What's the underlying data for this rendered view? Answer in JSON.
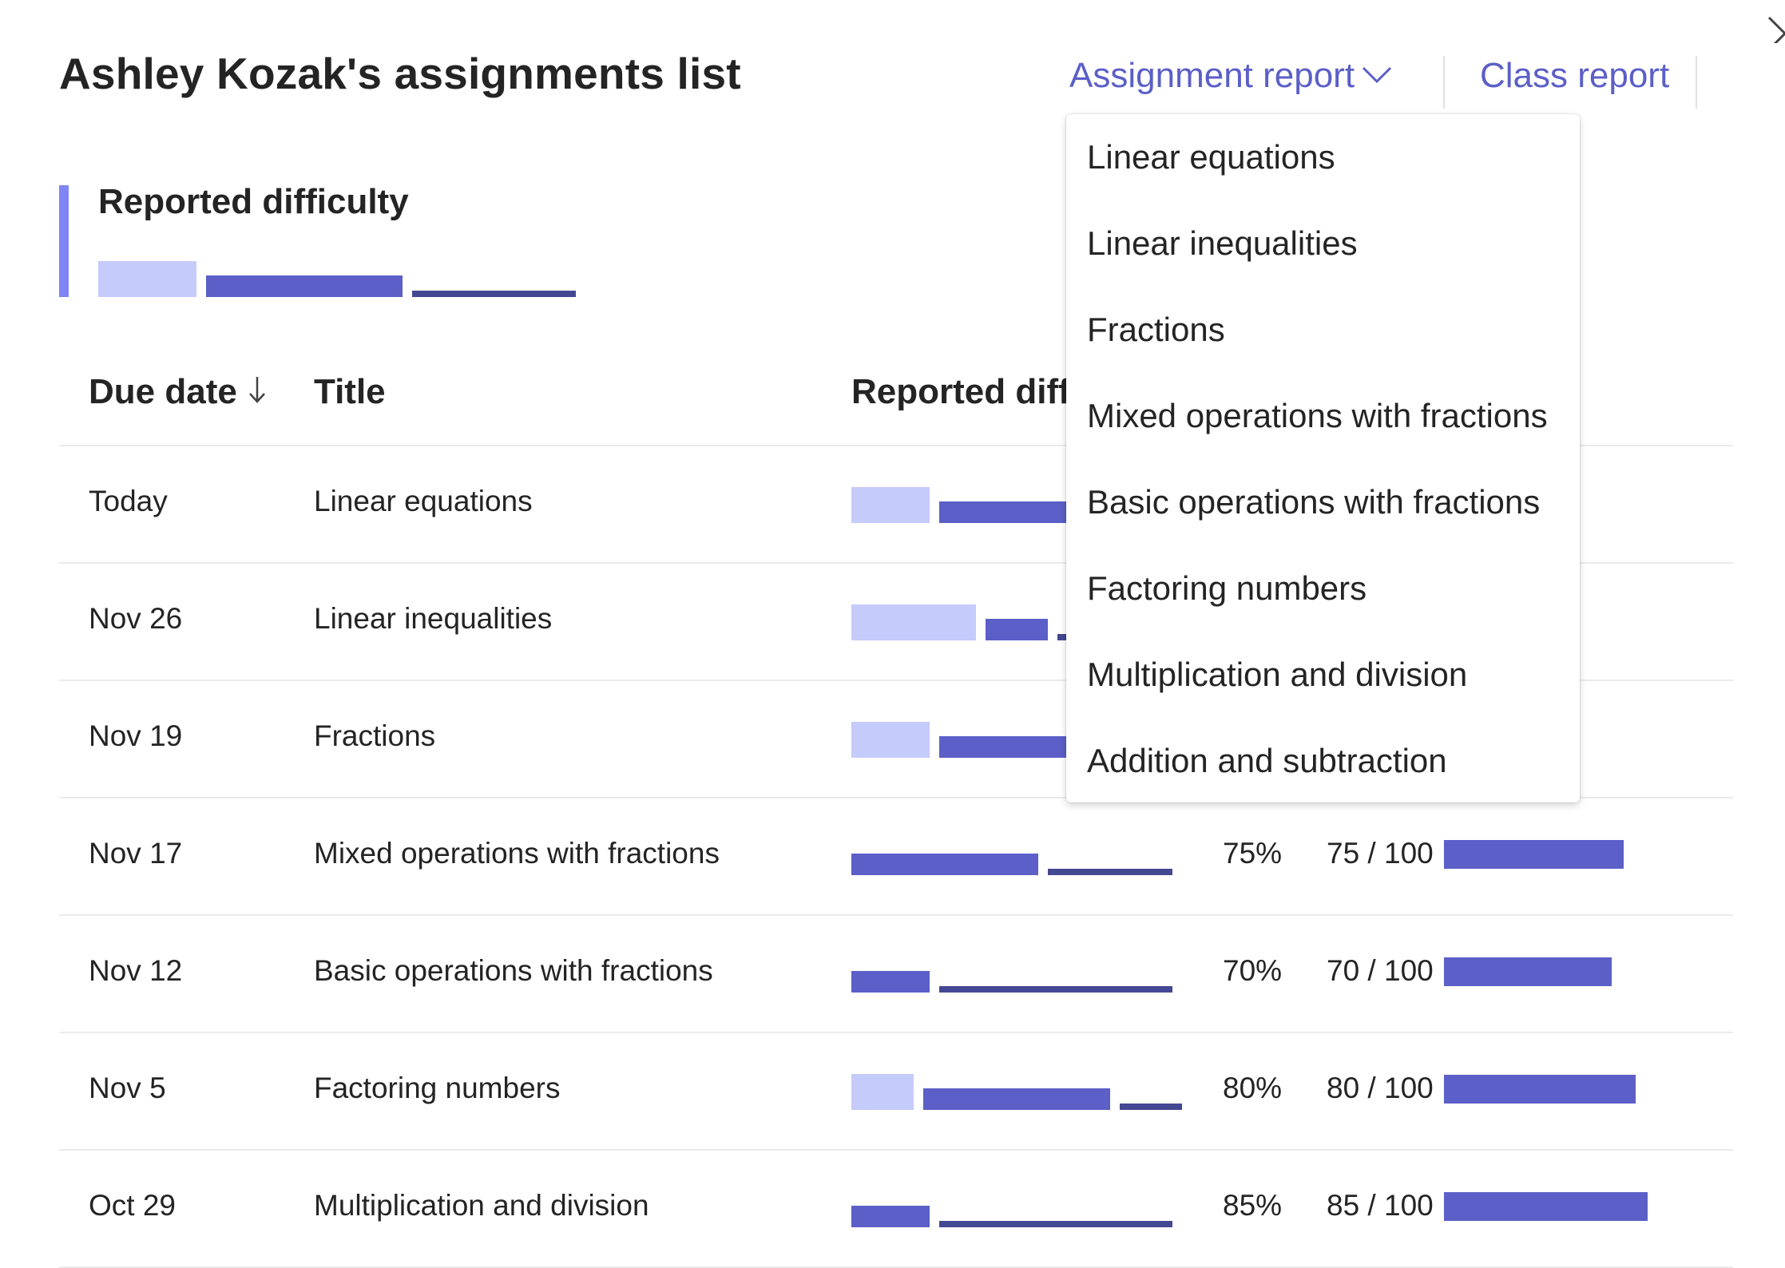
{
  "header": {
    "title": "Ashley Kozak's assignments list",
    "assignment_report_label": "Assignment report",
    "class_report_label": "Class report"
  },
  "summary": {
    "title": "Reported difficulty",
    "difficulty_fractions": [
      0.15,
      0.3,
      0.25
    ]
  },
  "columns": {
    "due_date": "Due date",
    "title": "Title",
    "reported_difficulty": "Reported diffi"
  },
  "rows": [
    {
      "due": "Today",
      "title": "Linear equations",
      "percent": "",
      "score": "",
      "difficulty": [
        0.25,
        0.45,
        0
      ],
      "grade_fraction": null
    },
    {
      "due": "Nov 26",
      "title": "Linear inequalities",
      "percent": "",
      "score": "",
      "difficulty": [
        0.4,
        0.2,
        0.05
      ],
      "grade_fraction": null
    },
    {
      "due": "Nov 19",
      "title": "Fractions",
      "percent": "",
      "score": "",
      "difficulty": [
        0.25,
        0.45,
        0
      ],
      "grade_fraction": null
    },
    {
      "due": "Nov 17",
      "title": "Mixed operations with fractions",
      "percent": "75%",
      "score": "75 / 100",
      "difficulty": [
        0,
        0.6,
        0.4
      ],
      "grade_fraction": 0.75
    },
    {
      "due": "Nov 12",
      "title": "Basic operations with fractions",
      "percent": "70%",
      "score": "70 / 100",
      "difficulty": [
        0,
        0.25,
        0.75
      ],
      "grade_fraction": 0.7
    },
    {
      "due": "Nov 5",
      "title": "Factoring numbers",
      "percent": "80%",
      "score": "80 / 100",
      "difficulty": [
        0.2,
        0.6,
        0.2
      ],
      "grade_fraction": 0.8
    },
    {
      "due": "Oct 29",
      "title": "Multiplication and division",
      "percent": "85%",
      "score": "85 / 100",
      "difficulty": [
        0,
        0.25,
        0.75
      ],
      "grade_fraction": 0.85
    }
  ],
  "dropdown": {
    "items": [
      "Linear equations",
      "Linear inequalities",
      "Fractions",
      "Mixed operations with fractions",
      "Basic operations with fractions",
      "Factoring numbers",
      "Multiplication and division",
      "Addition and subtraction"
    ]
  },
  "colors": {
    "accent": "#5b5fc7",
    "easy": "#c5cbfa",
    "medium": "#5b5fc7",
    "hard": "#444791",
    "summary_accent": "#7f85f5"
  },
  "icons": {
    "close": "close-icon",
    "chevron": "chevron-down-icon",
    "sort": "arrow-down-icon"
  }
}
